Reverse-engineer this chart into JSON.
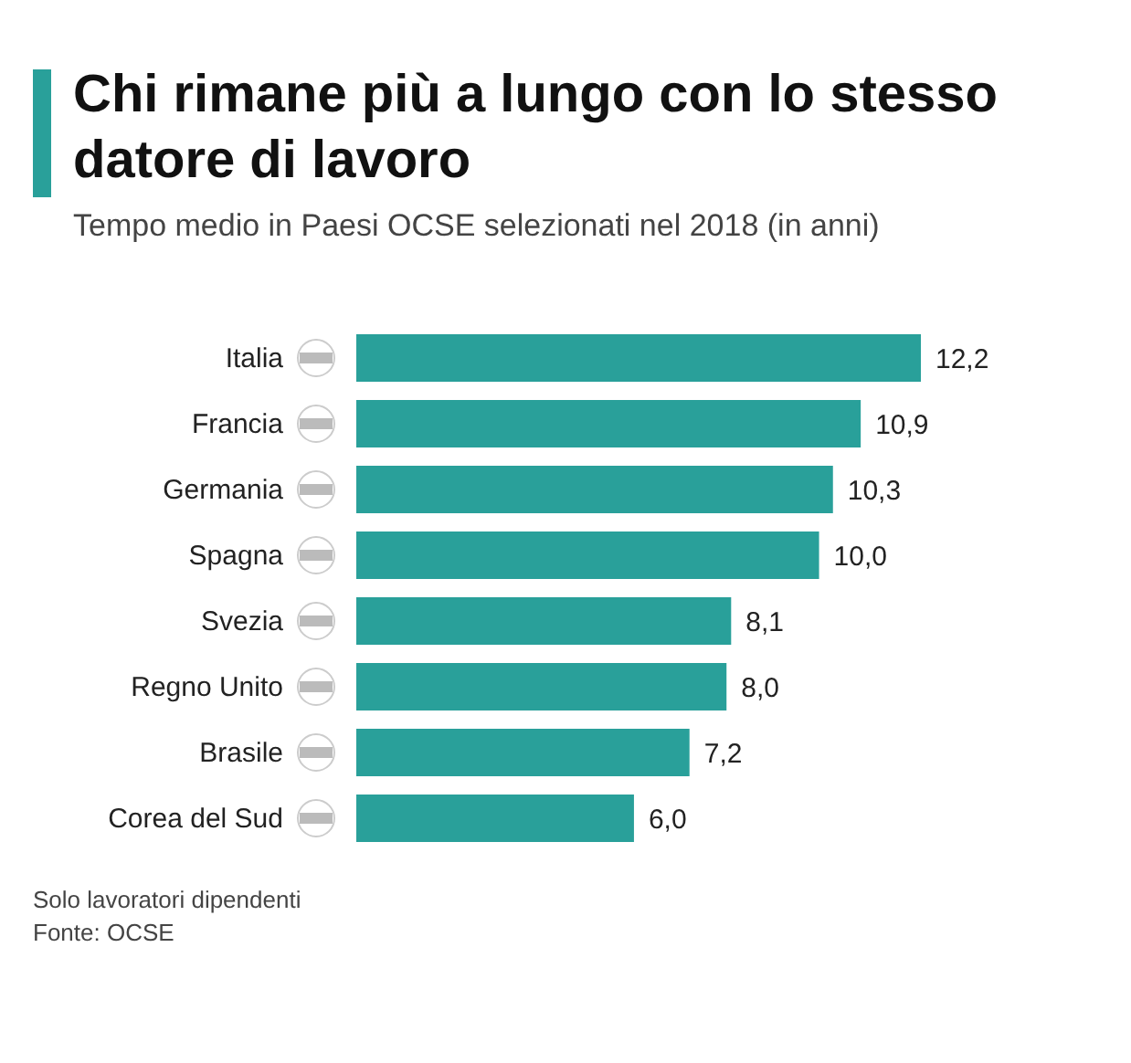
{
  "chart_data": {
    "type": "bar",
    "orientation": "horizontal",
    "title": "Chi rimane più a lungo con lo stesso datore di lavoro",
    "subtitle": "Tempo medio in Paesi OCSE selezionati nel 2018 (in anni)",
    "categories": [
      "Italia",
      "Francia",
      "Germania",
      "Spagna",
      "Svezia",
      "Regno Unito",
      "Brasile",
      "Corea del Sud"
    ],
    "values": [
      12.2,
      10.9,
      10.3,
      10.0,
      8.1,
      8.0,
      7.2,
      6.0
    ],
    "value_labels": [
      "12,2",
      "10,9",
      "10,3",
      "10,0",
      "8,1",
      "8,0",
      "7,2",
      "6,0"
    ],
    "color": "#29a09a",
    "annotations": [
      "Solo lavoratori dipendenti",
      "Fonte: OCSE"
    ]
  }
}
